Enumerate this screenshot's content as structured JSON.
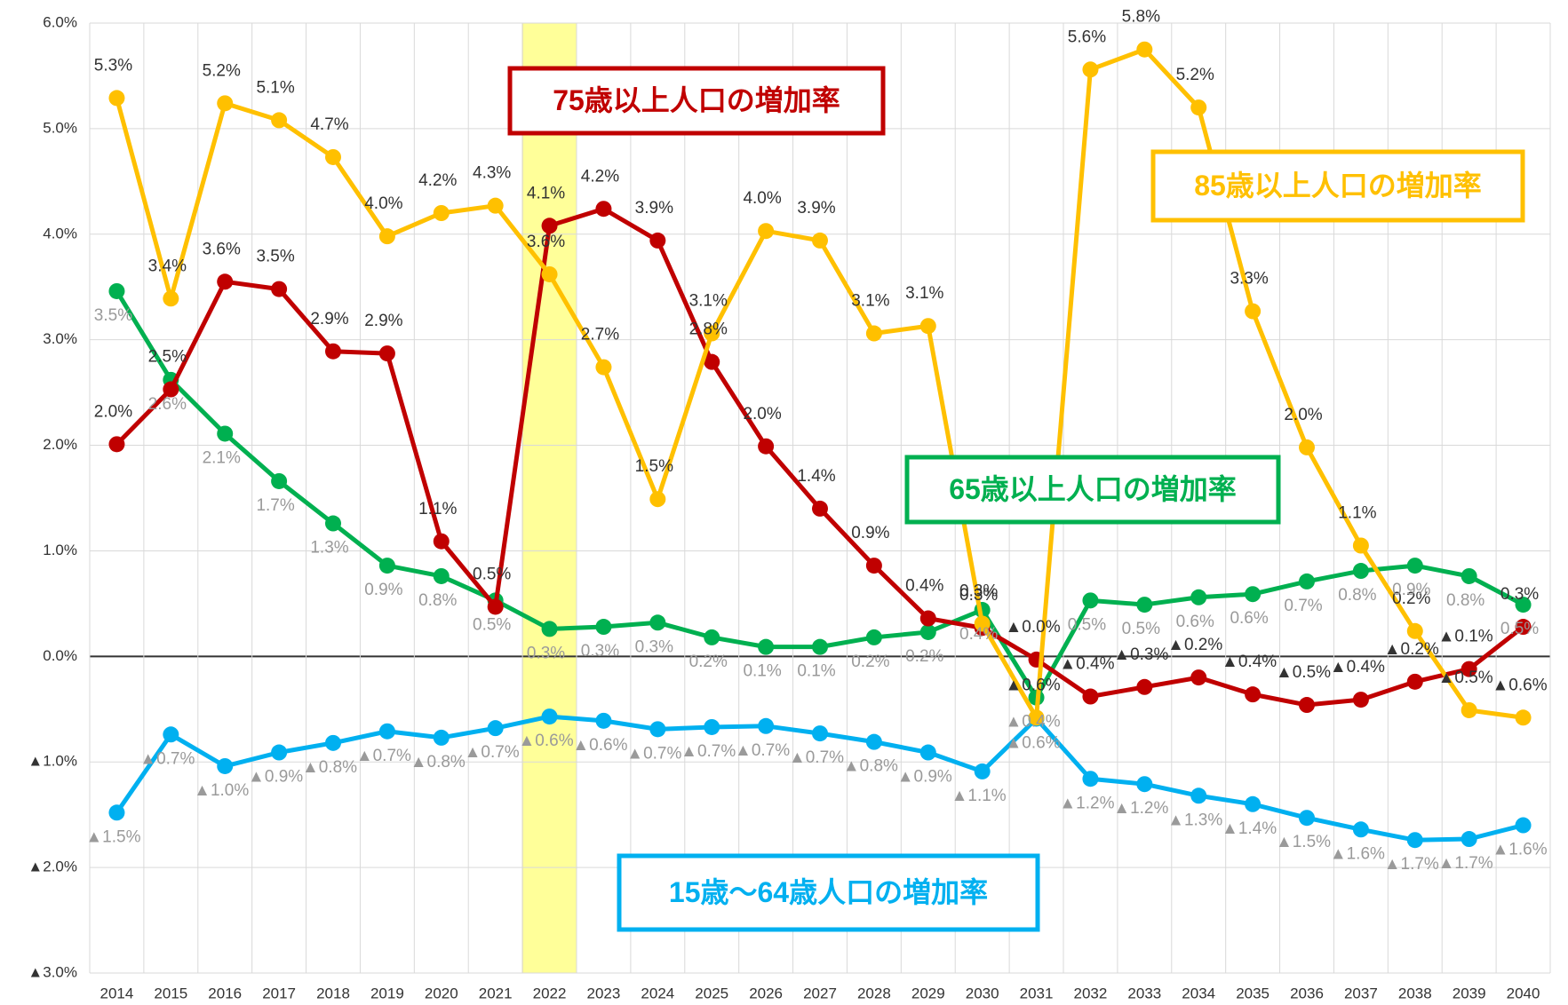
{
  "chart_data": {
    "type": "line",
    "categories": [
      "2014",
      "2015",
      "2016",
      "2017",
      "2018",
      "2019",
      "2020",
      "2021",
      "2022",
      "2023",
      "2024",
      "2025",
      "2026",
      "2027",
      "2028",
      "2029",
      "2030",
      "2031",
      "2032",
      "2033",
      "2034",
      "2035",
      "2036",
      "2037",
      "2038",
      "2039",
      "2040"
    ],
    "highlight_category": "2022",
    "highlight_color": "#ffff99",
    "ylim": [
      -3,
      6
    ],
    "yticks": [
      {
        "value": -3,
        "label": "▲3.0%"
      },
      {
        "value": -2,
        "label": "▲2.0%"
      },
      {
        "value": -1,
        "label": "▲1.0%"
      },
      {
        "value": 0,
        "label": "0.0%"
      },
      {
        "value": 1,
        "label": "1.0%"
      },
      {
        "value": 2,
        "label": "2.0%"
      },
      {
        "value": 3,
        "label": "3.0%"
      },
      {
        "value": 4,
        "label": "4.0%"
      },
      {
        "value": 5,
        "label": "5.0%"
      },
      {
        "value": 6,
        "label": "6.0%"
      }
    ],
    "grid": true,
    "series": [
      {
        "name": "85歳以上人口の増加率",
        "color": "#ffc000",
        "values": [
          5.29,
          3.39,
          5.24,
          5.08,
          4.73,
          3.98,
          4.2,
          4.27,
          3.62,
          2.74,
          1.49,
          3.06,
          4.03,
          3.94,
          3.06,
          3.13,
          0.31,
          -0.58,
          5.56,
          5.75,
          5.2,
          3.27,
          1.98,
          1.05,
          0.24,
          -0.51,
          -0.58
        ],
        "value_labels": [
          "5.3%",
          "3.4%",
          "5.2%",
          "5.1%",
          "4.7%",
          "4.0%",
          "4.2%",
          "4.3%",
          "3.6%",
          "2.7%",
          "1.5%",
          "3.1%",
          "4.0%",
          "3.9%",
          "3.1%",
          "3.1%",
          "0.3%",
          "▲0.6%",
          "5.6%",
          "5.8%",
          "5.2%",
          "3.3%",
          "2.0%",
          "1.1%",
          "0.2%",
          "▲0.5%",
          "▲0.6%"
        ]
      },
      {
        "name": "75歳以上人口の増加率",
        "color": "#c00000",
        "values": [
          2.01,
          2.53,
          3.55,
          3.48,
          2.89,
          2.87,
          1.09,
          0.47,
          4.08,
          4.24,
          3.94,
          2.79,
          1.99,
          1.4,
          0.86,
          0.36,
          0.27,
          -0.03,
          -0.38,
          -0.29,
          -0.2,
          -0.36,
          -0.46,
          -0.41,
          -0.24,
          -0.12,
          0.28
        ],
        "value_labels": [
          "2.0%",
          "2.5%",
          "3.6%",
          "3.5%",
          "2.9%",
          "2.9%",
          "1.1%",
          "0.5%",
          "4.1%",
          "4.2%",
          "3.9%",
          "2.8%",
          "2.0%",
          "1.4%",
          "0.9%",
          "0.4%",
          "0.3%",
          "▲0.0%",
          "▲0.4%",
          "▲0.3%",
          "▲0.2%",
          "▲0.4%",
          "▲0.5%",
          "▲0.4%",
          "▲0.2%",
          "▲0.1%",
          "0.3%"
        ]
      },
      {
        "name": "65歳以上人口の増加率",
        "color": "#00b050",
        "values": [
          3.46,
          2.62,
          2.11,
          1.66,
          1.26,
          0.86,
          0.76,
          0.53,
          0.26,
          0.28,
          0.32,
          0.18,
          0.09,
          0.09,
          0.18,
          0.23,
          0.44,
          -0.39,
          0.53,
          0.49,
          0.56,
          0.59,
          0.71,
          0.81,
          0.86,
          0.76,
          0.49
        ],
        "value_labels": [
          "3.5%",
          "2.6%",
          "2.1%",
          "1.7%",
          "1.3%",
          "0.9%",
          "0.8%",
          "0.5%",
          "0.3%",
          "0.3%",
          "0.3%",
          "0.2%",
          "0.1%",
          "0.1%",
          "0.2%",
          "0.2%",
          "0.4%",
          "▲0.4%",
          "0.5%",
          "0.5%",
          "0.6%",
          "0.6%",
          "0.7%",
          "0.8%",
          "0.9%",
          "0.8%",
          "0.5%"
        ]
      },
      {
        "name": "15歳～64歳人口の増加率",
        "color": "#00b0f0",
        "values": [
          -1.48,
          -0.74,
          -1.04,
          -0.91,
          -0.82,
          -0.71,
          -0.77,
          -0.68,
          -0.57,
          -0.61,
          -0.69,
          -0.67,
          -0.66,
          -0.73,
          -0.81,
          -0.91,
          -1.09,
          -0.59,
          -1.16,
          -1.21,
          -1.32,
          -1.4,
          -1.53,
          -1.64,
          -1.74,
          -1.73,
          -1.6
        ],
        "value_labels": [
          "▲1.5%",
          "▲0.7%",
          "▲1.0%",
          "▲0.9%",
          "▲0.8%",
          "▲0.7%",
          "▲0.8%",
          "▲0.7%",
          "▲0.6%",
          "▲0.6%",
          "▲0.7%",
          "▲0.7%",
          "▲0.7%",
          "▲0.7%",
          "▲0.8%",
          "▲0.9%",
          "▲1.1%",
          "▲0.6%",
          "▲1.2%",
          "▲1.2%",
          "▲1.3%",
          "▲1.4%",
          "▲1.5%",
          "▲1.6%",
          "▲1.7%",
          "▲1.7%",
          "▲1.6%"
        ]
      }
    ]
  }
}
